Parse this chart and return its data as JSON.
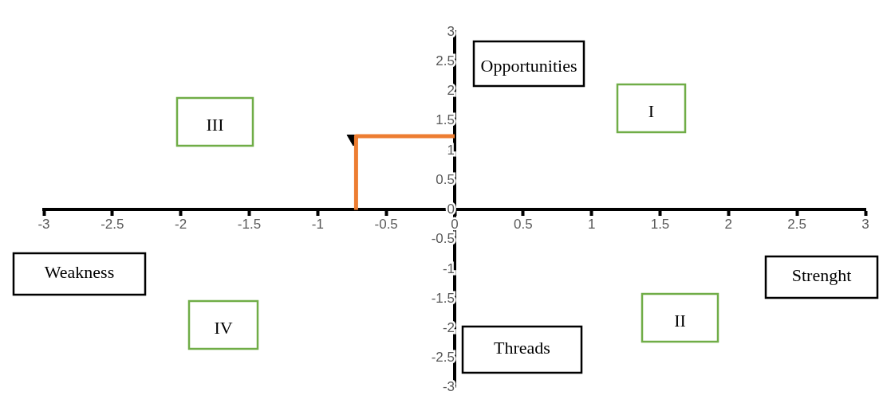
{
  "chart_data": {
    "type": "line",
    "xlim": [
      -3,
      3
    ],
    "ylim": [
      -3,
      3
    ],
    "xticks": [
      -3,
      -2.5,
      -2,
      -1.5,
      -1,
      -0.5,
      0,
      0.5,
      1,
      1.5,
      2,
      2.5,
      3
    ],
    "yticks": [
      -3,
      -2.5,
      -2,
      -1.5,
      -1,
      -0.5,
      0,
      0.5,
      1,
      1.5,
      2,
      2.5,
      3
    ],
    "grid": false,
    "legend": false,
    "series": [
      {
        "color": "#ed7d31",
        "x": [
          -0.72,
          -0.72,
          0
        ],
        "values": [
          0,
          1.24,
          1.24
        ],
        "marker": "none"
      },
      {
        "type": "scatter",
        "color": "#000000",
        "x": [
          -0.74
        ],
        "values": [
          1.2
        ],
        "marker": "triangle"
      }
    ],
    "annotations": [
      "Opportunities",
      "I",
      "III",
      "IV",
      "II",
      "Weakness",
      "Strenght",
      "Threads"
    ]
  }
}
